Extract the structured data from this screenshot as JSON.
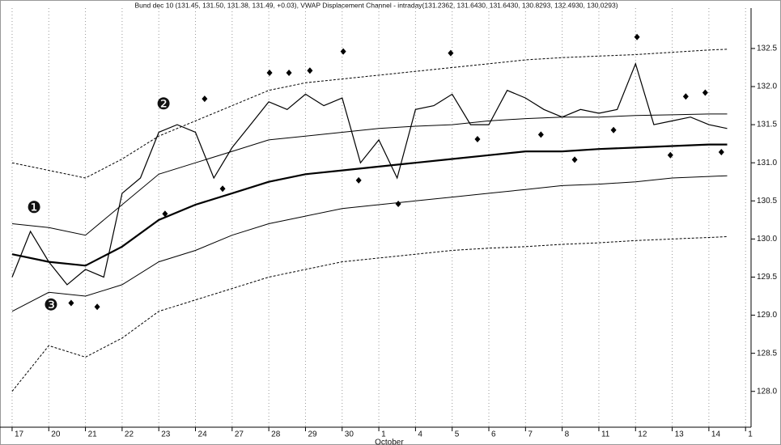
{
  "chart_data": {
    "type": "line",
    "title": "Bund dec 10 (131.45, 131.50, 131.38, 131.49, +0.03), VWAP Displacement Channel - intraday(131.2362, 131.6430, 131.6430, 130.8293, 132.4930, 130.0293)",
    "categories": [
      "17",
      "20",
      "21",
      "22",
      "23",
      "24",
      "27",
      "28",
      "29",
      "30",
      "1",
      "4",
      "5",
      "6",
      "7",
      "8",
      "11",
      "12",
      "13",
      "14",
      "1"
    ],
    "month_label": {
      "text": "October",
      "at": 10
    },
    "xlim": [
      -0.33,
      20.15
    ],
    "ylim": [
      127.53,
      133.03
    ],
    "yticks": [
      {
        "value": 128,
        "label": "128.0"
      },
      128.5,
      {
        "value": 129,
        "label": "129.0"
      },
      129.5,
      {
        "value": 130,
        "label": "130.0"
      },
      130.5,
      {
        "value": 131,
        "label": "131.0"
      },
      131.5,
      {
        "value": 132,
        "label": "132.0"
      },
      132.5
    ],
    "grid": true,
    "series": [
      {
        "color": "#000000",
        "style": "price",
        "x": [
          0,
          0.5,
          1,
          1.5,
          2,
          2.5,
          3,
          3.5,
          4,
          4.5,
          5,
          5.5,
          6,
          6.5,
          7,
          7.5,
          8,
          8.5,
          9,
          9.5,
          10,
          10.5,
          11,
          11.5,
          12,
          12.5,
          13,
          13.5,
          14,
          14.5,
          15,
          15.5,
          16,
          16.5,
          17,
          17.5,
          18,
          18.5,
          19,
          19.5
        ],
        "values": [
          129.5,
          130.1,
          129.7,
          129.4,
          129.6,
          129.5,
          130.6,
          130.8,
          131.4,
          131.5,
          131.4,
          130.8,
          131.2,
          131.5,
          131.8,
          131.7,
          131.9,
          131.75,
          131.85,
          131.0,
          131.3,
          130.8,
          131.7,
          131.75,
          131.9,
          131.5,
          131.5,
          131.95,
          131.85,
          131.7,
          131.6,
          131.7,
          131.65,
          131.7,
          132.3,
          131.5,
          131.55,
          131.6,
          131.5,
          131.45
        ]
      },
      {
        "color": "#000000",
        "style": "bold",
        "x": [
          0,
          1,
          2,
          3,
          4,
          5,
          6,
          7,
          8,
          9,
          10,
          11,
          12,
          13,
          14,
          15,
          16,
          17,
          18,
          19,
          19.5
        ],
        "values": [
          129.8,
          129.7,
          129.65,
          129.9,
          130.25,
          130.45,
          130.6,
          130.75,
          130.85,
          130.9,
          130.95,
          131.0,
          131.05,
          131.1,
          131.15,
          131.15,
          131.18,
          131.2,
          131.22,
          131.24,
          131.24
        ]
      },
      {
        "color": "#000000",
        "style": "solid",
        "x": [
          0,
          1,
          2,
          3,
          4,
          5,
          6,
          7,
          8,
          9,
          10,
          11,
          12,
          13,
          14,
          15,
          16,
          17,
          18,
          19,
          19.5
        ],
        "values": [
          130.2,
          130.15,
          130.05,
          130.45,
          130.85,
          131.0,
          131.15,
          131.3,
          131.35,
          131.4,
          131.45,
          131.48,
          131.5,
          131.55,
          131.58,
          131.6,
          131.6,
          131.62,
          131.63,
          131.64,
          131.64
        ]
      },
      {
        "color": "#000000",
        "style": "solid",
        "x": [
          0,
          1,
          2,
          3,
          4,
          5,
          6,
          7,
          8,
          9,
          10,
          11,
          12,
          13,
          14,
          15,
          16,
          17,
          18,
          19,
          19.5
        ],
        "values": [
          129.05,
          129.3,
          129.25,
          129.4,
          129.7,
          129.85,
          130.05,
          130.2,
          130.3,
          130.4,
          130.45,
          130.5,
          130.55,
          130.6,
          130.65,
          130.7,
          130.72,
          130.75,
          130.8,
          130.82,
          130.83
        ]
      },
      {
        "color": "#000000",
        "style": "dashed",
        "x": [
          0,
          1,
          2,
          3,
          4,
          5,
          6,
          7,
          8,
          9,
          10,
          11,
          12,
          13,
          14,
          15,
          16,
          17,
          18,
          19,
          19.5
        ],
        "values": [
          131.0,
          130.9,
          130.8,
          131.05,
          131.35,
          131.55,
          131.75,
          131.95,
          132.05,
          132.1,
          132.15,
          132.2,
          132.25,
          132.3,
          132.35,
          132.38,
          132.4,
          132.42,
          132.45,
          132.48,
          132.49
        ]
      },
      {
        "color": "#000000",
        "style": "dashed",
        "x": [
          0,
          1,
          2,
          3,
          4,
          5,
          6,
          7,
          8,
          9,
          10,
          11,
          12,
          13,
          14,
          15,
          16,
          17,
          18,
          19,
          19.5
        ],
        "values": [
          128.0,
          128.6,
          128.45,
          128.7,
          129.05,
          129.2,
          129.35,
          129.5,
          129.6,
          129.7,
          129.75,
          129.8,
          129.85,
          129.88,
          129.9,
          129.93,
          129.95,
          129.98,
          130.0,
          130.02,
          130.03
        ]
      }
    ],
    "markers": {
      "color": "#000000",
      "x": [
        1.61,
        2.32,
        4.17,
        5.25,
        5.74,
        7.02,
        7.55,
        8.12,
        9.03,
        9.45,
        10.53,
        11.96,
        12.69,
        14.42,
        15.34,
        16.4,
        17.04,
        17.95,
        18.37,
        18.9,
        19.34
      ],
      "values": [
        129.16,
        129.11,
        130.33,
        131.84,
        130.66,
        132.18,
        132.18,
        132.21,
        132.46,
        130.77,
        130.46,
        132.44,
        131.31,
        131.37,
        131.04,
        131.43,
        132.65,
        131.1,
        131.87,
        131.92,
        131.14
      ]
    },
    "annotations": [
      {
        "text": "❶",
        "x": 0.6,
        "y": 130.4
      },
      {
        "text": "❷",
        "x": 4.13,
        "y": 131.76
      },
      {
        "text": "❸",
        "x": 1.06,
        "y": 129.12
      }
    ]
  }
}
